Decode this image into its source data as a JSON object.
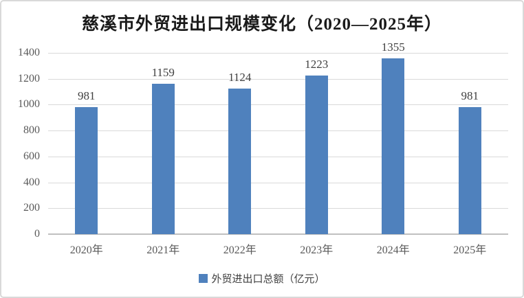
{
  "chart_data": {
    "type": "bar",
    "title": "慈溪市外贸进出口规模变化（2020—2025年）",
    "categories": [
      "2020年",
      "2021年",
      "2022年",
      "2023年",
      "2024年",
      "2025年"
    ],
    "values": [
      981,
      1159,
      1124,
      1223,
      1355,
      981
    ],
    "series_name": "外贸进出口总额（亿元）",
    "xlabel": "",
    "ylabel": "",
    "ylim": [
      0,
      1400
    ],
    "yticks": [
      0,
      200,
      400,
      600,
      800,
      1000,
      1200,
      1400
    ],
    "grid": true,
    "data_labels": true,
    "legend_position": "bottom"
  },
  "legend": {
    "marker_icon": "square-icon",
    "label": "外贸进出口总额（亿元）"
  },
  "colors": {
    "bar": "#4F81BD",
    "gridline": "#D9D9D9",
    "axis_line": "#BFBFBF",
    "title_text": "#1A1A1A",
    "value_label_text": "#404040",
    "tick_text": "#595959",
    "frame_border": "#D9D9D9"
  }
}
